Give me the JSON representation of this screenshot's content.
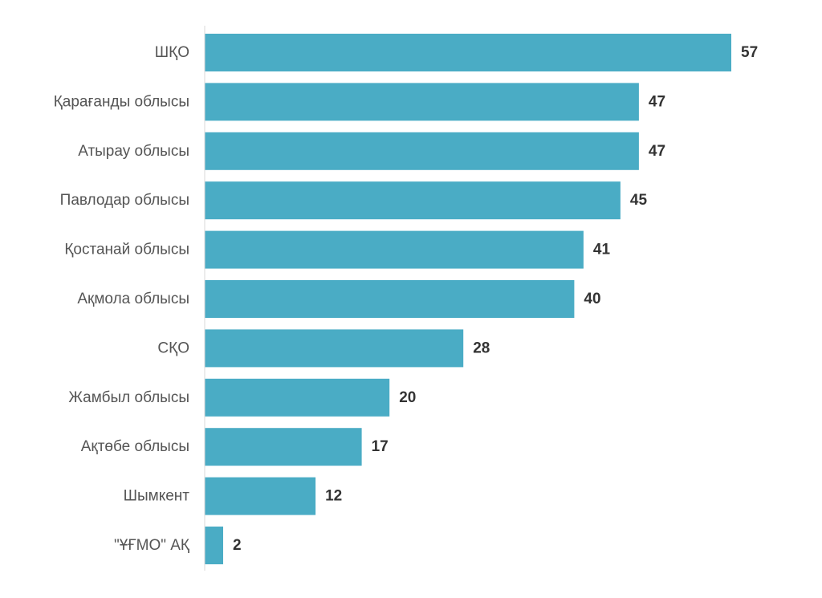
{
  "chart_data": {
    "type": "bar",
    "orientation": "horizontal",
    "categories": [
      "ШҚО",
      "Қарағанды облысы",
      "Атырау облысы",
      "Павлодар облысы",
      "Қостанай облысы",
      "Ақмола облысы",
      "СҚО",
      "Жамбыл облысы",
      "Ақтөбе облысы",
      "Шымкент",
      "\"ҰҒМО\" АҚ"
    ],
    "values": [
      57,
      47,
      47,
      45,
      41,
      40,
      28,
      20,
      17,
      12,
      2
    ],
    "value_labels": [
      "57",
      "47",
      "47",
      "45",
      "41",
      "40",
      "28",
      "20",
      "17",
      "12",
      "2"
    ],
    "xlim": [
      0,
      57
    ],
    "grid": false,
    "legend": "none",
    "bar_color": "#4AACC5",
    "axis_color": "#D9D9D9"
  }
}
